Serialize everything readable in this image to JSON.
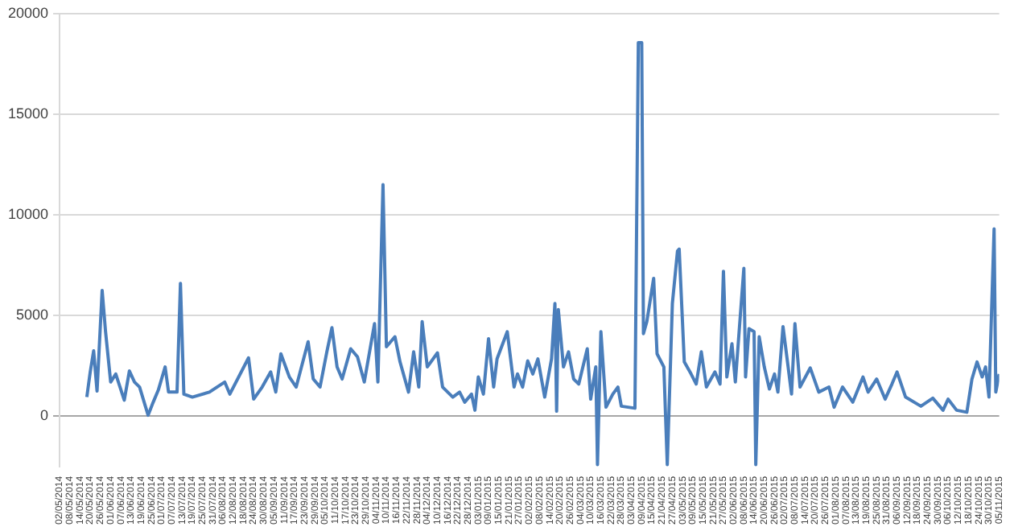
{
  "chart_data": {
    "type": "line",
    "marker": "none",
    "grid": "y",
    "xlim": [
      "2014-05-02",
      "2015-11-05"
    ],
    "xticks": [
      {
        "value": "2014-05-02",
        "label": "02/05/2014"
      },
      {
        "value": "2014-05-08",
        "label": "08/05/2014"
      },
      {
        "value": "2014-05-14",
        "label": "14/05/2014"
      },
      {
        "value": "2014-05-20",
        "label": "20/05/2014"
      },
      {
        "value": "2014-05-26",
        "label": "26/05/2014"
      },
      {
        "value": "2014-06-01",
        "label": "01/06/2014"
      },
      {
        "value": "2014-06-07",
        "label": "07/06/2014"
      },
      {
        "value": "2014-06-13",
        "label": "13/06/2014"
      },
      {
        "value": "2014-06-19",
        "label": "19/06/2014"
      },
      {
        "value": "2014-06-25",
        "label": "25/06/2014"
      },
      {
        "value": "2014-07-01",
        "label": "01/07/2014"
      },
      {
        "value": "2014-07-07",
        "label": "07/07/2014"
      },
      {
        "value": "2014-07-13",
        "label": "13/07/2014"
      },
      {
        "value": "2014-07-19",
        "label": "19/07/2014"
      },
      {
        "value": "2014-07-25",
        "label": "25/07/2014"
      },
      {
        "value": "2014-07-31",
        "label": "31/07/2014"
      },
      {
        "value": "2014-08-06",
        "label": "06/08/2014"
      },
      {
        "value": "2014-08-12",
        "label": "12/08/2014"
      },
      {
        "value": "2014-08-18",
        "label": "18/08/2014"
      },
      {
        "value": "2014-08-24",
        "label": "24/08/2014"
      },
      {
        "value": "2014-08-30",
        "label": "30/08/2014"
      },
      {
        "value": "2014-09-05",
        "label": "05/09/2014"
      },
      {
        "value": "2014-09-11",
        "label": "11/09/2014"
      },
      {
        "value": "2014-09-17",
        "label": "17/09/2014"
      },
      {
        "value": "2014-09-23",
        "label": "23/09/2014"
      },
      {
        "value": "2014-09-29",
        "label": "29/09/2014"
      },
      {
        "value": "2014-10-05",
        "label": "05/10/2014"
      },
      {
        "value": "2014-10-11",
        "label": "11/10/2014"
      },
      {
        "value": "2014-10-17",
        "label": "17/10/2014"
      },
      {
        "value": "2014-10-23",
        "label": "23/10/2014"
      },
      {
        "value": "2014-10-29",
        "label": "29/10/2014"
      },
      {
        "value": "2014-11-04",
        "label": "04/11/2014"
      },
      {
        "value": "2014-11-10",
        "label": "10/11/2014"
      },
      {
        "value": "2014-11-16",
        "label": "16/11/2014"
      },
      {
        "value": "2014-11-22",
        "label": "22/11/2014"
      },
      {
        "value": "2014-11-28",
        "label": "28/11/2014"
      },
      {
        "value": "2014-12-04",
        "label": "04/12/2014"
      },
      {
        "value": "2014-12-10",
        "label": "10/12/2014"
      },
      {
        "value": "2014-12-16",
        "label": "16/12/2014"
      },
      {
        "value": "2014-12-22",
        "label": "22/12/2014"
      },
      {
        "value": "2014-12-28",
        "label": "28/12/2014"
      },
      {
        "value": "2015-01-03",
        "label": "03/01/2015"
      },
      {
        "value": "2015-01-09",
        "label": "09/01/2015"
      },
      {
        "value": "2015-01-15",
        "label": "15/01/2015"
      },
      {
        "value": "2015-01-21",
        "label": "21/01/2015"
      },
      {
        "value": "2015-01-27",
        "label": "27/01/2015"
      },
      {
        "value": "2015-02-02",
        "label": "02/02/2015"
      },
      {
        "value": "2015-02-08",
        "label": "08/02/2015"
      },
      {
        "value": "2015-02-14",
        "label": "14/02/2015"
      },
      {
        "value": "2015-02-20",
        "label": "20/02/2015"
      },
      {
        "value": "2015-02-26",
        "label": "26/02/2015"
      },
      {
        "value": "2015-03-04",
        "label": "04/03/2015"
      },
      {
        "value": "2015-03-10",
        "label": "10/03/2015"
      },
      {
        "value": "2015-03-16",
        "label": "16/03/2015"
      },
      {
        "value": "2015-03-22",
        "label": "22/03/2015"
      },
      {
        "value": "2015-03-28",
        "label": "28/03/2015"
      },
      {
        "value": "2015-04-03",
        "label": "03/04/2015"
      },
      {
        "value": "2015-04-09",
        "label": "09/04/2015"
      },
      {
        "value": "2015-04-15",
        "label": "15/04/2015"
      },
      {
        "value": "2015-04-21",
        "label": "21/04/2015"
      },
      {
        "value": "2015-04-27",
        "label": "27/04/2015"
      },
      {
        "value": "2015-05-03",
        "label": "03/05/2015"
      },
      {
        "value": "2015-05-09",
        "label": "09/05/2015"
      },
      {
        "value": "2015-05-15",
        "label": "15/05/2015"
      },
      {
        "value": "2015-05-21",
        "label": "21/05/2015"
      },
      {
        "value": "2015-05-27",
        "label": "27/05/2015"
      },
      {
        "value": "2015-06-02",
        "label": "02/06/2015"
      },
      {
        "value": "2015-06-08",
        "label": "08/06/2015"
      },
      {
        "value": "2015-06-14",
        "label": "14/06/2015"
      },
      {
        "value": "2015-06-20",
        "label": "20/06/2015"
      },
      {
        "value": "2015-06-26",
        "label": "26/06/2015"
      },
      {
        "value": "2015-07-02",
        "label": "02/07/2015"
      },
      {
        "value": "2015-07-08",
        "label": "08/07/2015"
      },
      {
        "value": "2015-07-14",
        "label": "14/07/2015"
      },
      {
        "value": "2015-07-20",
        "label": "20/07/2015"
      },
      {
        "value": "2015-07-26",
        "label": "26/07/2015"
      },
      {
        "value": "2015-08-01",
        "label": "01/08/2015"
      },
      {
        "value": "2015-08-07",
        "label": "07/08/2015"
      },
      {
        "value": "2015-08-13",
        "label": "13/08/2015"
      },
      {
        "value": "2015-08-19",
        "label": "19/08/2015"
      },
      {
        "value": "2015-08-25",
        "label": "25/08/2015"
      },
      {
        "value": "2015-08-31",
        "label": "31/08/2015"
      },
      {
        "value": "2015-09-06",
        "label": "06/09/2015"
      },
      {
        "value": "2015-09-12",
        "label": "12/09/2015"
      },
      {
        "value": "2015-09-18",
        "label": "18/09/2015"
      },
      {
        "value": "2015-09-24",
        "label": "24/09/2015"
      },
      {
        "value": "2015-09-30",
        "label": "30/09/2015"
      },
      {
        "value": "2015-10-06",
        "label": "06/10/2015"
      },
      {
        "value": "2015-10-12",
        "label": "12/10/2015"
      },
      {
        "value": "2015-10-18",
        "label": "18/10/2015"
      },
      {
        "value": "2015-10-24",
        "label": "24/10/2015"
      },
      {
        "value": "2015-10-30",
        "label": "30/10/2015"
      },
      {
        "value": "2015-11-05",
        "label": "05/11/2015"
      }
    ],
    "ylim": [
      -2500,
      20000
    ],
    "yticks": [
      0,
      5000,
      10000,
      15000,
      20000
    ],
    "x": [
      "2014-05-18",
      "2014-05-20",
      "2014-05-22",
      "2014-05-24",
      "2014-05-27",
      "2014-05-29",
      "2014-06-01",
      "2014-06-04",
      "2014-06-09",
      "2014-06-12",
      "2014-06-15",
      "2014-06-18",
      "2014-06-23",
      "2014-06-26",
      "2014-06-29",
      "2014-07-03",
      "2014-07-05",
      "2014-07-10",
      "2014-07-12",
      "2014-07-14",
      "2014-07-19",
      "2014-07-29",
      "2014-08-07",
      "2014-08-10",
      "2014-08-21",
      "2014-08-24",
      "2014-08-29",
      "2014-09-03",
      "2014-09-06",
      "2014-09-09",
      "2014-09-14",
      "2014-09-18",
      "2014-09-25",
      "2014-09-28",
      "2014-10-02",
      "2014-10-06",
      "2014-10-09",
      "2014-10-12",
      "2014-10-15",
      "2014-10-20",
      "2014-10-24",
      "2014-10-28",
      "2014-11-03",
      "2014-11-05",
      "2014-11-08",
      "2014-11-10",
      "2014-11-15",
      "2014-11-18",
      "2014-11-23",
      "2014-11-26",
      "2014-11-29",
      "2014-12-01",
      "2014-12-04",
      "2014-12-10",
      "2014-12-13",
      "2014-12-19",
      "2014-12-23",
      "2014-12-26",
      "2014-12-30",
      "2015-01-01",
      "2015-01-03",
      "2015-01-06",
      "2015-01-09",
      "2015-01-12",
      "2015-01-14",
      "2015-01-20",
      "2015-01-24",
      "2015-01-26",
      "2015-01-29",
      "2015-02-01",
      "2015-02-04",
      "2015-02-07",
      "2015-02-11",
      "2015-02-15",
      "2015-02-17",
      "2015-02-18",
      "2015-02-19",
      "2015-02-22",
      "2015-02-25",
      "2015-02-28",
      "2015-03-03",
      "2015-03-08",
      "2015-03-10",
      "2015-03-13",
      "2015-03-14",
      "2015-03-16",
      "2015-03-19",
      "2015-03-23",
      "2015-03-26",
      "2015-03-28",
      "2015-04-05",
      "2015-04-07",
      "2015-04-09",
      "2015-04-10",
      "2015-04-12",
      "2015-04-16",
      "2015-04-18",
      "2015-04-22",
      "2015-04-24",
      "2015-04-27",
      "2015-04-30",
      "2015-05-01",
      "2015-05-04",
      "2015-05-08",
      "2015-05-11",
      "2015-05-14",
      "2015-05-17",
      "2015-05-22",
      "2015-05-25",
      "2015-05-27",
      "2015-05-29",
      "2015-06-01",
      "2015-06-03",
      "2015-06-08",
      "2015-06-09",
      "2015-06-11",
      "2015-06-14",
      "2015-06-15",
      "2015-06-17",
      "2015-06-20",
      "2015-06-23",
      "2015-06-26",
      "2015-06-28",
      "2015-07-01",
      "2015-07-04",
      "2015-07-06",
      "2015-07-08",
      "2015-07-11",
      "2015-07-17",
      "2015-07-22",
      "2015-07-28",
      "2015-07-31",
      "2015-08-05",
      "2015-08-11",
      "2015-08-17",
      "2015-08-20",
      "2015-08-25",
      "2015-08-30",
      "2015-09-03",
      "2015-09-06",
      "2015-09-11",
      "2015-09-20",
      "2015-09-27",
      "2015-10-03",
      "2015-10-06",
      "2015-10-11",
      "2015-10-17",
      "2015-10-20",
      "2015-10-23",
      "2015-10-26",
      "2015-10-28",
      "2015-10-30",
      "2015-11-02",
      "2015-11-03",
      "2015-11-05"
    ],
    "series": [
      {
        "color": "#4a7ebb",
        "values": [
          950,
          2200,
          3250,
          1250,
          6250,
          4200,
          1700,
          2100,
          800,
          2250,
          1700,
          1450,
          50,
          700,
          1300,
          2450,
          1200,
          1200,
          6600,
          1100,
          950,
          1200,
          1700,
          1100,
          2900,
          850,
          1450,
          2200,
          1200,
          3100,
          1950,
          1450,
          3700,
          1850,
          1450,
          3200,
          4400,
          2450,
          1850,
          3350,
          2950,
          1700,
          4600,
          1700,
          11500,
          3450,
          3950,
          2700,
          1200,
          3200,
          1450,
          4700,
          2450,
          3150,
          1450,
          950,
          1200,
          700,
          1100,
          300,
          1950,
          1100,
          3850,
          1450,
          2850,
          4200,
          1450,
          2100,
          1450,
          2750,
          2100,
          2850,
          950,
          2850,
          5600,
          250,
          5300,
          2450,
          3200,
          1850,
          1600,
          3350,
          850,
          2450,
          -2400,
          4200,
          450,
          1100,
          1450,
          500,
          400,
          18550,
          18550,
          4100,
          4700,
          6850,
          3100,
          2450,
          -2400,
          5600,
          8200,
          8300,
          2700,
          2100,
          1600,
          3200,
          1450,
          2200,
          1600,
          7200,
          1950,
          3600,
          1700,
          7350,
          1950,
          4350,
          4200,
          -2400,
          3950,
          2450,
          1350,
          2100,
          1200,
          4450,
          2450,
          1100,
          4600,
          1450,
          2400,
          1200,
          1450,
          450,
          1450,
          700,
          1950,
          1200,
          1850,
          850,
          1600,
          2200,
          950,
          500,
          900,
          300,
          850,
          300,
          200,
          1850,
          2700,
          1950,
          2450,
          950,
          9300,
          1200,
          2100
        ]
      }
    ]
  }
}
